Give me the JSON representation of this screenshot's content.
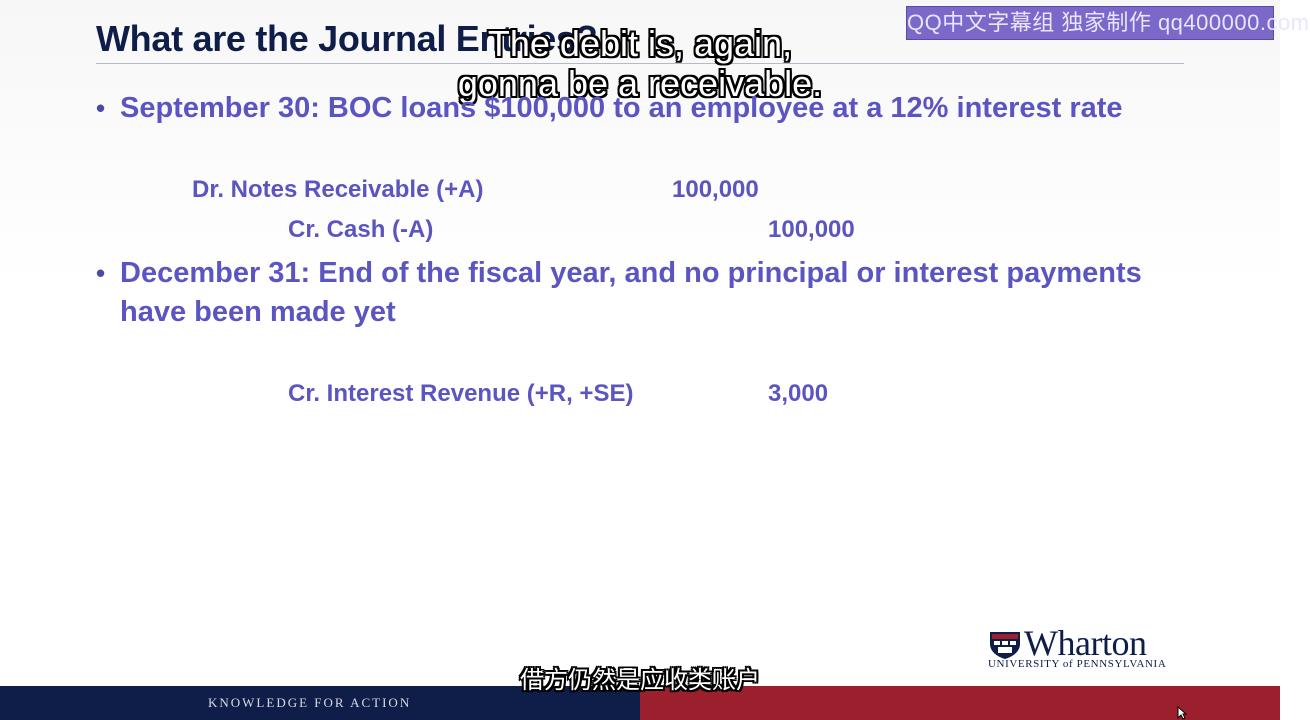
{
  "slide": {
    "title": "What are the Journal Entries?",
    "watermark": "QQ中文字幕组 独家制作 qq400000.com",
    "bullets": [
      {
        "symbol": "•",
        "text": "September 30: BOC loans $100,000 to an employee at a 12% interest rate"
      },
      {
        "symbol": "•",
        "text": "December 31: End of the fiscal year, and no principal or interest payments have been made yet"
      }
    ],
    "entries": [
      {
        "label": "Dr. Notes Receivable (+A)",
        "amount": "100,000"
      },
      {
        "label": "Cr. Cash (-A)",
        "amount": "100,000"
      },
      {
        "label": "Cr. Interest Revenue (+R, +SE)",
        "amount": "3,000"
      }
    ],
    "logo": {
      "wordmark": "Wharton",
      "subtitle": "UNIVERSITY of PENNSYLVANIA"
    },
    "footer": {
      "tagline": "KNOWLEDGE FOR ACTION"
    }
  },
  "subtitles": {
    "english_line1": "The debit is, again,",
    "english_line2": "gonna be a receivable.",
    "chinese": "借方仍然是应收类账户"
  },
  "colors": {
    "title": "#0f1e48",
    "body_text": "#5b55c2",
    "footer_navy": "#0f1e48",
    "footer_red": "#9c1f2e",
    "watermark_bg": "#7b68c9"
  }
}
